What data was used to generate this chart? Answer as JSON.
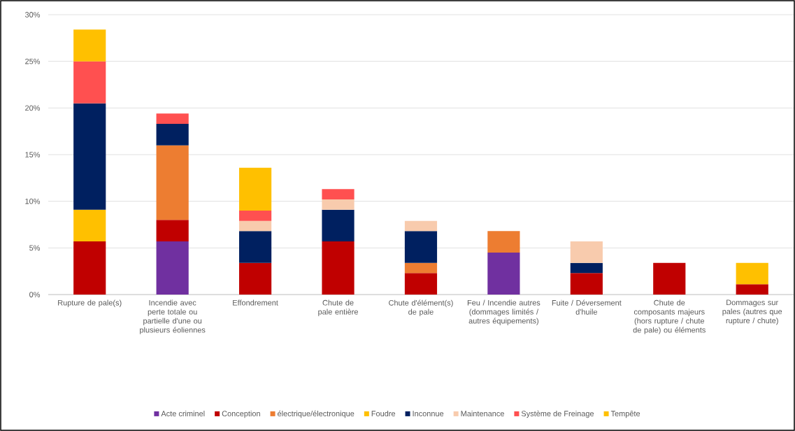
{
  "chart_data": {
    "type": "bar",
    "stacked": true,
    "categories": [
      "Rupture de pale(s)",
      "Incendie avec perte totale ou partielle d'une ou plusieurs éoliennes",
      "Effondrement",
      "Chute de pale entière",
      "Chute d'élément(s) de pale",
      "Feu / Incendie autres (dommages limités / autres équipements)",
      "Fuite / Déversement d'huile",
      "Chute de composants majeurs (hors rupture / chute de pale) ou éléments",
      "Dommages sur pales (autres que rupture / chute)"
    ],
    "series": [
      {
        "name": "Acte criminel",
        "color": "#7030a0",
        "values": [
          null,
          5.7,
          null,
          null,
          null,
          4.5,
          null,
          null,
          null
        ]
      },
      {
        "name": "Conception",
        "color": "#c00000",
        "values": [
          5.7,
          2.3,
          3.4,
          5.7,
          2.3,
          null,
          2.3,
          3.4,
          1.1
        ]
      },
      {
        "name": "électrique/électronique",
        "color": "#ed7d31",
        "values": [
          null,
          8.0,
          null,
          null,
          1.1,
          2.3,
          null,
          null,
          null
        ]
      },
      {
        "name": "Foudre",
        "color": "#ffc000",
        "values": [
          3.4,
          null,
          null,
          null,
          null,
          null,
          null,
          null,
          null
        ]
      },
      {
        "name": "Inconnue",
        "color": "#002060",
        "values": [
          11.4,
          2.3,
          3.4,
          3.4,
          3.4,
          null,
          1.1,
          null,
          null
        ]
      },
      {
        "name": "Maintenance",
        "color": "#f8cbad",
        "values": [
          null,
          null,
          1.1,
          1.1,
          1.1,
          null,
          2.3,
          null,
          null
        ]
      },
      {
        "name": "Système de Freinage",
        "color": "#ff5050",
        "values": [
          4.5,
          1.1,
          1.1,
          1.1,
          null,
          null,
          null,
          null,
          null
        ]
      },
      {
        "name": "Tempête",
        "color": "#ffc000",
        "values": [
          3.4,
          null,
          4.6,
          null,
          null,
          null,
          null,
          null,
          2.3
        ]
      }
    ],
    "ylim": [
      0,
      30
    ],
    "yticks": [
      {
        "value": 0,
        "label": "0%"
      },
      {
        "value": 5,
        "label": "5%"
      },
      {
        "value": 10,
        "label": "10%"
      },
      {
        "value": 15,
        "label": "15%"
      },
      {
        "value": 20,
        "label": "20%"
      },
      {
        "value": 25,
        "label": "25%"
      },
      {
        "value": 30,
        "label": "30%"
      }
    ],
    "grid": "y",
    "legend": "bottom"
  }
}
